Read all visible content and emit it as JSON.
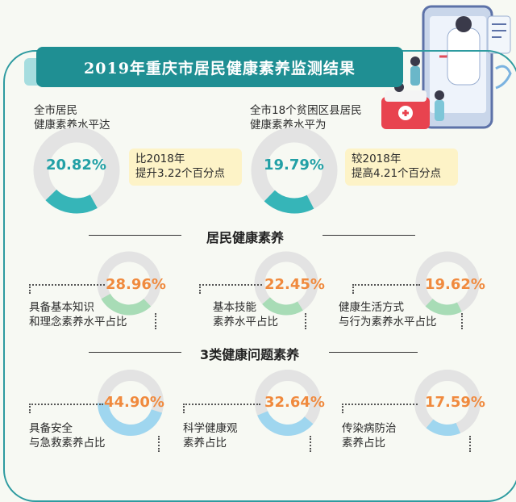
{
  "title": "2019年重庆市居民健康素养监测结果",
  "chart_data": [
    {
      "type": "donut",
      "label_lines": [
        "全市居民",
        "健康素养水平达"
      ],
      "value_label": "20.82%",
      "value": 20.82,
      "note_lines": [
        "比2018年",
        "提升3.22个百分点"
      ],
      "color": "#36b5b8"
    },
    {
      "type": "donut",
      "label_lines": [
        "全市18个贫困区县居民",
        "健康素养水平为"
      ],
      "value_label": "19.79%",
      "value": 19.79,
      "note_lines": [
        "较2018年",
        "提高4.21个百分点"
      ],
      "color": "#36b5b8"
    }
  ],
  "sections": [
    {
      "title": "居民健康素养",
      "items": [
        {
          "label_lines": [
            "具备基本知识",
            "和理念素养水平占比"
          ],
          "value_label": "28.96%",
          "value": 28.96,
          "color": "#a8dcb6"
        },
        {
          "label_lines": [
            "基本技能",
            "素养水平占比"
          ],
          "value_label": "22.45%",
          "value": 22.45,
          "color": "#a8dcb6"
        },
        {
          "label_lines": [
            "健康生活方式",
            "与行为素养水平占比"
          ],
          "value_label": "19.62%",
          "value": 19.62,
          "color": "#a8dcb6"
        }
      ]
    },
    {
      "title": "3类健康问题素养",
      "items": [
        {
          "label_lines": [
            "具备安全",
            "与急救素养占比"
          ],
          "value_label": "44.90%",
          "value": 44.9,
          "color": "#9fd6ef"
        },
        {
          "label_lines": [
            "科学健康观",
            "素养占比"
          ],
          "value_label": "32.64%",
          "value": 32.64,
          "color": "#9fd6ef"
        },
        {
          "label_lines": [
            "传染病防治",
            "素养占比"
          ],
          "value_label": "17.59%",
          "value": 17.59,
          "color": "#9fd6ef"
        }
      ]
    }
  ],
  "colors": {
    "track": "#e3e3e3",
    "title_banner": "#1f8f93",
    "note_box": "#fdf3c7",
    "teal_text": "#22a0a6",
    "orange_text": "#f08a3e"
  }
}
